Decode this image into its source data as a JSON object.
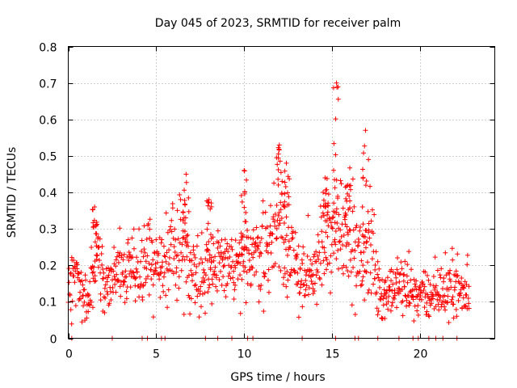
{
  "chart_data": {
    "type": "scatter",
    "title": "Day 045 of 2023, SRMTID for receiver palm",
    "xlabel": "GPS time / hours",
    "ylabel": "SRMTID / TECUs",
    "xlim": [
      0,
      24.25
    ],
    "ylim": [
      0,
      0.8
    ],
    "xticks": [
      0,
      5,
      10,
      15,
      20
    ],
    "yticks": [
      0,
      0.1,
      0.2,
      0.3,
      0.4,
      0.5,
      0.6,
      0.7,
      0.8
    ],
    "xtick_labels": [
      "0",
      "5",
      "10",
      "15",
      "20"
    ],
    "ytick_labels": [
      "0",
      "0.1",
      "0.2",
      "0.3",
      "0.4",
      "0.5",
      "0.6",
      "0.7",
      "0.8"
    ],
    "grid": true,
    "marker": "+",
    "color": "#ff0000",
    "x_range": [
      0,
      22.8
    ],
    "trend": [
      [
        0.0,
        0.14
      ],
      [
        0.5,
        0.17
      ],
      [
        0.8,
        0.11
      ],
      [
        1.2,
        0.1
      ],
      [
        1.5,
        0.24
      ],
      [
        2.0,
        0.15
      ],
      [
        2.5,
        0.16
      ],
      [
        3.0,
        0.18
      ],
      [
        3.5,
        0.19
      ],
      [
        4.0,
        0.17
      ],
      [
        4.5,
        0.22
      ],
      [
        5.0,
        0.2
      ],
      [
        5.5,
        0.19
      ],
      [
        6.0,
        0.24
      ],
      [
        6.5,
        0.26
      ],
      [
        7.0,
        0.2
      ],
      [
        7.5,
        0.18
      ],
      [
        8.0,
        0.2
      ],
      [
        8.5,
        0.2
      ],
      [
        9.0,
        0.19
      ],
      [
        9.5,
        0.19
      ],
      [
        10.0,
        0.2
      ],
      [
        10.5,
        0.23
      ],
      [
        11.0,
        0.24
      ],
      [
        11.5,
        0.25
      ],
      [
        12.0,
        0.33
      ],
      [
        12.3,
        0.28
      ],
      [
        12.7,
        0.2
      ],
      [
        13.0,
        0.2
      ],
      [
        13.5,
        0.16
      ],
      [
        14.0,
        0.17
      ],
      [
        14.5,
        0.27
      ],
      [
        15.0,
        0.25
      ],
      [
        15.3,
        0.32
      ],
      [
        15.6,
        0.3
      ],
      [
        16.0,
        0.33
      ],
      [
        16.3,
        0.22
      ],
      [
        16.8,
        0.2
      ],
      [
        17.2,
        0.3
      ],
      [
        17.6,
        0.12
      ],
      [
        18.0,
        0.12
      ],
      [
        18.5,
        0.13
      ],
      [
        19.0,
        0.15
      ],
      [
        19.5,
        0.13
      ],
      [
        20.0,
        0.12
      ],
      [
        20.5,
        0.11
      ],
      [
        21.0,
        0.13
      ],
      [
        21.5,
        0.12
      ],
      [
        22.0,
        0.15
      ],
      [
        22.5,
        0.12
      ],
      [
        22.8,
        0.13
      ]
    ],
    "spikes": [
      {
        "x": 15.25,
        "peak": 0.7
      },
      {
        "x": 16.9,
        "peak": 0.57
      },
      {
        "x": 12.0,
        "peak": 0.53
      },
      {
        "x": 14.6,
        "peak": 0.44
      },
      {
        "x": 10.0,
        "peak": 0.46
      },
      {
        "x": 6.7,
        "peak": 0.45
      },
      {
        "x": 1.5,
        "peak": 0.36
      },
      {
        "x": 8.0,
        "peak": 0.38
      },
      {
        "x": 15.9,
        "peak": 0.42
      },
      {
        "x": 12.4,
        "peak": 0.48
      }
    ],
    "zero_points_x": [
      0.2,
      2.5,
      4.2,
      4.5,
      5.3,
      5.5,
      7.8,
      8.5,
      9.3,
      10.2,
      10.5,
      13.3,
      15.2,
      16.3,
      16.5,
      17.6,
      18.8,
      19.6,
      19.9,
      20.5,
      20.9,
      21.3,
      22.1
    ]
  }
}
